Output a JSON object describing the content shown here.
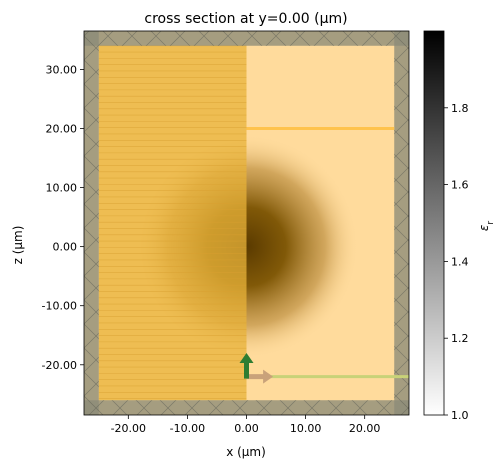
{
  "chart_data": {
    "type": "heatmap",
    "title": "cross section at y=0.00 (μm)",
    "xlabel": "x (μm)",
    "ylabel": "z (μm)",
    "xlim": [
      -27.5,
      27.5
    ],
    "ylim": [
      -28.5,
      36.5
    ],
    "x_ticks": [
      -20,
      -10,
      0,
      10,
      20
    ],
    "x_tick_labels": [
      "-20.00",
      "-10.00",
      "0.00",
      "10.00",
      "20.00"
    ],
    "y_ticks": [
      -20,
      -10,
      0,
      10,
      20,
      30
    ],
    "y_tick_labels": [
      "-20.00",
      "-10.00",
      "0.00",
      "10.00",
      "20.00",
      "30.00"
    ],
    "colorbar": {
      "label": "εr",
      "range": [
        1.0,
        2.0
      ],
      "ticks": [
        1.0,
        1.2,
        1.4,
        1.6,
        1.8
      ],
      "tick_labels": [
        "1.0",
        "1.2",
        "1.4",
        "1.6",
        "1.8"
      ],
      "colormap": "greys"
    },
    "structures": {
      "sphere": {
        "center": [
          0,
          0
        ],
        "radius": 19
      },
      "pml_boundaries": {
        "x": [
          -25,
          25
        ],
        "z": [
          -26,
          34
        ]
      },
      "plane_monitor_z": 20,
      "source_z": -22,
      "symmetry_half_x": [
        -25,
        0
      ]
    },
    "colors": {
      "background_fill": "#ffdb9c",
      "symmetry_overlay": "#e8b33a",
      "pml_gray": "#8c8c78",
      "monitor_line": "#ffc34d",
      "source_line": "#c8d278",
      "source_arrow": "#2e7d32",
      "direction_arrow": "#c9a27a",
      "sphere_core": "#5a3a00"
    }
  }
}
